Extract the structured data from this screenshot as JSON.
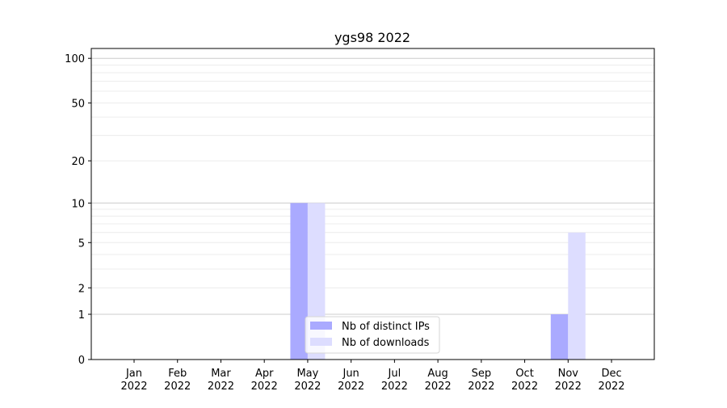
{
  "chart_data": {
    "type": "bar",
    "title": "ygs98 2022",
    "xlabel": "",
    "ylabel": "",
    "yscale": "log(1+y)",
    "ylim": [
      0,
      116
    ],
    "yticks": [
      0,
      1,
      2,
      5,
      10,
      20,
      50,
      100
    ],
    "grid": true,
    "legend_placement": "lower-center",
    "categories": [
      "Jan\n2022",
      "Feb\n2022",
      "Mar\n2022",
      "Apr\n2022",
      "May\n2022",
      "Jun\n2022",
      "Jul\n2022",
      "Aug\n2022",
      "Sep\n2022",
      "Oct\n2022",
      "Nov\n2022",
      "Dec\n2022"
    ],
    "series": [
      {
        "name": "Nb of distinct IPs",
        "color": "#aaaaff",
        "values": [
          0,
          0,
          0,
          0,
          10,
          0,
          0,
          0,
          0,
          0,
          1,
          0
        ]
      },
      {
        "name": "Nb of downloads",
        "color": "#ddddff",
        "values": [
          0,
          0,
          0,
          0,
          10,
          0,
          0,
          0,
          0,
          0,
          6,
          0
        ]
      }
    ]
  }
}
